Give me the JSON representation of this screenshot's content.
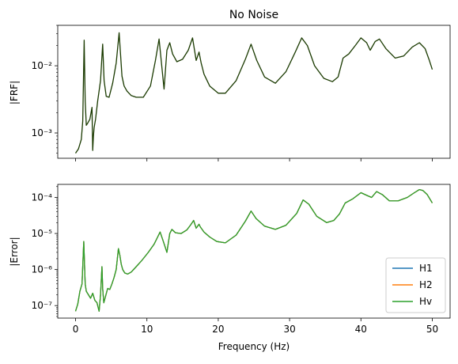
{
  "chart_data": [
    {
      "type": "line",
      "title": "No Noise",
      "xlabel": "",
      "ylabel": "|FRF|",
      "yscale": "log",
      "xlim": [
        -2.5,
        52.5
      ],
      "ylim": [
        0.00042,
        0.04
      ],
      "x_ticks": [
        0,
        10,
        20,
        30,
        40,
        50
      ],
      "x_ticklabels": [
        "",
        "",
        "",
        "",
        "",
        ""
      ],
      "y_ticks": [
        0.001,
        0.01
      ],
      "y_ticklabels": [
        "10⁻³",
        "10⁻²"
      ],
      "grid": false,
      "series": [
        {
          "color": "#1a3a00",
          "x": [
            0.0,
            0.4,
            0.8,
            1.0,
            1.2,
            1.35,
            1.5,
            1.7,
            2.0,
            2.3,
            2.4,
            2.5,
            2.6,
            2.8,
            3.1,
            3.5,
            3.8,
            4.0,
            4.3,
            4.7,
            5.2,
            5.7,
            6.1,
            6.5,
            6.8,
            7.2,
            7.8,
            8.5,
            9.5,
            10.5,
            11.2,
            11.7,
            12.0,
            12.4,
            12.8,
            13.2,
            13.6,
            14.2,
            15.0,
            15.8,
            16.4,
            16.9,
            17.3,
            17.6,
            18.0,
            18.8,
            20.0,
            21.0,
            22.5,
            23.8,
            24.6,
            25.4,
            26.5,
            28.0,
            29.5,
            30.8,
            31.7,
            32.5,
            33.5,
            34.8,
            36.0,
            36.8,
            37.5,
            38.3,
            39.2,
            40.0,
            40.8,
            41.3,
            42.0,
            42.6,
            43.5,
            44.8,
            46.0,
            47.2,
            48.2,
            49.0,
            49.6,
            50.0
          ],
          "y": [
            0.0005,
            0.00058,
            0.0008,
            0.0015,
            0.024,
            0.003,
            0.0013,
            0.0014,
            0.0016,
            0.0024,
            0.00055,
            0.0009,
            0.0012,
            0.0016,
            0.003,
            0.006,
            0.021,
            0.006,
            0.0035,
            0.0034,
            0.0055,
            0.011,
            0.031,
            0.007,
            0.005,
            0.0042,
            0.0036,
            0.0034,
            0.0034,
            0.005,
            0.012,
            0.025,
            0.012,
            0.0045,
            0.017,
            0.022,
            0.015,
            0.0115,
            0.0125,
            0.017,
            0.026,
            0.012,
            0.016,
            0.011,
            0.0075,
            0.005,
            0.0039,
            0.0039,
            0.006,
            0.0125,
            0.021,
            0.012,
            0.0068,
            0.0055,
            0.0082,
            0.016,
            0.026,
            0.02,
            0.01,
            0.0065,
            0.0058,
            0.0068,
            0.013,
            0.015,
            0.02,
            0.026,
            0.022,
            0.017,
            0.023,
            0.025,
            0.018,
            0.013,
            0.014,
            0.019,
            0.022,
            0.018,
            0.012,
            0.0088
          ]
        }
      ]
    },
    {
      "type": "line",
      "title": "",
      "xlabel": "Frequency (Hz)",
      "ylabel": "|Error|",
      "yscale": "log",
      "xlim": [
        -2.5,
        52.5
      ],
      "ylim": [
        4.5e-08,
        0.00023
      ],
      "x_ticks": [
        0,
        10,
        20,
        30,
        40,
        50
      ],
      "x_ticklabels": [
        "0",
        "10",
        "20",
        "30",
        "40",
        "50"
      ],
      "y_ticks": [
        1e-07,
        1e-06,
        1e-05,
        0.0001
      ],
      "y_ticklabels": [
        "10⁻⁷",
        "10⁻⁶",
        "10⁻⁵",
        "10⁻⁴"
      ],
      "grid": false,
      "legend": {
        "placement": "bottom-right",
        "entries": [
          "H1",
          "H2",
          "Hv"
        ]
      },
      "series": [
        {
          "name": "H1",
          "color": "#1f77b4",
          "x": [
            0.0,
            0.3,
            0.6,
            0.9,
            1.15,
            1.25,
            1.35,
            1.5,
            1.8,
            2.1,
            2.4,
            2.7,
            3.0,
            3.3,
            3.5,
            3.7,
            3.8,
            3.95,
            4.2,
            4.5,
            4.8,
            5.1,
            5.4,
            5.7,
            6.0,
            6.2,
            6.4,
            6.6,
            6.9,
            7.3,
            7.8,
            8.5,
            9.3,
            10.2,
            11.0,
            11.5,
            11.85,
            12.3,
            12.8,
            13.2,
            13.5,
            14.0,
            14.8,
            15.6,
            16.2,
            16.55,
            16.9,
            17.3,
            17.5,
            18.0,
            18.8,
            19.8,
            21.0,
            22.5,
            23.8,
            24.6,
            25.3,
            26.5,
            28.0,
            29.5,
            31.0,
            31.9,
            32.7,
            33.8,
            35.2,
            36.2,
            37.0,
            37.8,
            38.8,
            40.0,
            41.0,
            41.5,
            42.2,
            43.0,
            44.0,
            45.2,
            46.5,
            47.5,
            48.2,
            48.7,
            49.3,
            50.0
          ],
          "y": [
            7e-08,
            1.1e-07,
            2.5e-07,
            4e-07,
            6e-06,
            1.5e-06,
            4e-07,
            2.5e-07,
            2e-07,
            1.6e-07,
            2.2e-07,
            1.4e-07,
            1.2e-07,
            7e-08,
            2e-07,
            1.2e-06,
            3e-07,
            1.2e-07,
            1.8e-07,
            3e-07,
            2.8e-07,
            4e-07,
            6e-07,
            1e-06,
            3.8e-06,
            2.5e-06,
            1.4e-06,
            1e-06,
            8e-07,
            7.5e-07,
            8.5e-07,
            1.2e-06,
            1.8e-06,
            3e-06,
            5e-06,
            8e-06,
            1.1e-05,
            6e-06,
            3e-06,
            1e-05,
            1.3e-05,
            1.05e-05,
            1e-05,
            1.25e-05,
            1.8e-05,
            2.3e-05,
            1.4e-05,
            1.8e-05,
            1.5e-05,
            1.1e-05,
            8e-06,
            6e-06,
            5.5e-06,
            9e-06,
            2.2e-05,
            4.2e-05,
            2.6e-05,
            1.6e-05,
            1.3e-05,
            1.7e-05,
            3.6e-05,
            8.5e-05,
            6.5e-05,
            3e-05,
            2e-05,
            2.3e-05,
            3.5e-05,
            7e-05,
            9e-05,
            0.000135,
            0.00011,
            0.0001,
            0.000145,
            0.00012,
            8e-05,
            8e-05,
            0.0001,
            0.000135,
            0.000165,
            0.000155,
            0.00012,
            7e-05
          ]
        },
        {
          "name": "H2",
          "color": "#ff7f0e",
          "x": [
            0.0,
            0.3,
            0.6,
            0.9,
            1.15,
            1.25,
            1.35,
            1.5,
            1.8,
            2.1,
            2.4,
            2.7,
            3.0,
            3.3,
            3.5,
            3.7,
            3.8,
            3.95,
            4.2,
            4.5,
            4.8,
            5.1,
            5.4,
            5.7,
            6.0,
            6.2,
            6.4,
            6.6,
            6.9,
            7.3,
            7.8,
            8.5,
            9.3,
            10.2,
            11.0,
            11.5,
            11.85,
            12.3,
            12.8,
            13.2,
            13.5,
            14.0,
            14.8,
            15.6,
            16.2,
            16.55,
            16.9,
            17.3,
            17.5,
            18.0,
            18.8,
            19.8,
            21.0,
            22.5,
            23.8,
            24.6,
            25.3,
            26.5,
            28.0,
            29.5,
            31.0,
            31.9,
            32.7,
            33.8,
            35.2,
            36.2,
            37.0,
            37.8,
            38.8,
            40.0,
            41.0,
            41.5,
            42.2,
            43.0,
            44.0,
            45.2,
            46.5,
            47.5,
            48.2,
            48.7,
            49.3,
            50.0
          ],
          "y": [
            7e-08,
            1.1e-07,
            2.5e-07,
            4e-07,
            6e-06,
            1.5e-06,
            4e-07,
            2.5e-07,
            2e-07,
            1.6e-07,
            2.2e-07,
            1.4e-07,
            1.2e-07,
            7e-08,
            2e-07,
            1.2e-06,
            3e-07,
            1.2e-07,
            1.8e-07,
            3e-07,
            2.8e-07,
            4e-07,
            6e-07,
            1e-06,
            3.8e-06,
            2.5e-06,
            1.4e-06,
            1e-06,
            8e-07,
            7.5e-07,
            8.5e-07,
            1.2e-06,
            1.8e-06,
            3e-06,
            5e-06,
            8e-06,
            1.1e-05,
            6e-06,
            3e-06,
            1e-05,
            1.3e-05,
            1.05e-05,
            1e-05,
            1.25e-05,
            1.8e-05,
            2.3e-05,
            1.4e-05,
            1.8e-05,
            1.5e-05,
            1.1e-05,
            8e-06,
            6e-06,
            5.5e-06,
            9e-06,
            2.2e-05,
            4.2e-05,
            2.6e-05,
            1.6e-05,
            1.3e-05,
            1.7e-05,
            3.6e-05,
            8.5e-05,
            6.5e-05,
            3e-05,
            2e-05,
            2.3e-05,
            3.5e-05,
            7e-05,
            9e-05,
            0.000135,
            0.00011,
            0.0001,
            0.000145,
            0.00012,
            8e-05,
            8e-05,
            0.0001,
            0.000135,
            0.000165,
            0.000155,
            0.00012,
            7e-05
          ]
        },
        {
          "name": "Hv",
          "color": "#2ca02c",
          "x": [
            0.0,
            0.3,
            0.6,
            0.9,
            1.15,
            1.25,
            1.35,
            1.5,
            1.8,
            2.1,
            2.4,
            2.7,
            3.0,
            3.3,
            3.5,
            3.7,
            3.8,
            3.95,
            4.2,
            4.5,
            4.8,
            5.1,
            5.4,
            5.7,
            6.0,
            6.2,
            6.4,
            6.6,
            6.9,
            7.3,
            7.8,
            8.5,
            9.3,
            10.2,
            11.0,
            11.5,
            11.85,
            12.3,
            12.8,
            13.2,
            13.5,
            14.0,
            14.8,
            15.6,
            16.2,
            16.55,
            16.9,
            17.3,
            17.5,
            18.0,
            18.8,
            19.8,
            21.0,
            22.5,
            23.8,
            24.6,
            25.3,
            26.5,
            28.0,
            29.5,
            31.0,
            31.9,
            32.7,
            33.8,
            35.2,
            36.2,
            37.0,
            37.8,
            38.8,
            40.0,
            41.0,
            41.5,
            42.2,
            43.0,
            44.0,
            45.2,
            46.5,
            47.5,
            48.2,
            48.7,
            49.3,
            50.0
          ],
          "y": [
            7e-08,
            1.1e-07,
            2.5e-07,
            4e-07,
            6e-06,
            1.5e-06,
            4e-07,
            2.5e-07,
            2e-07,
            1.6e-07,
            2.2e-07,
            1.4e-07,
            1.2e-07,
            7e-08,
            2e-07,
            1.2e-06,
            3e-07,
            1.2e-07,
            1.8e-07,
            3e-07,
            2.8e-07,
            4e-07,
            6e-07,
            1e-06,
            3.8e-06,
            2.5e-06,
            1.4e-06,
            1e-06,
            8e-07,
            7.5e-07,
            8.5e-07,
            1.2e-06,
            1.8e-06,
            3e-06,
            5e-06,
            8e-06,
            1.1e-05,
            6e-06,
            3e-06,
            1e-05,
            1.3e-05,
            1.05e-05,
            1e-05,
            1.25e-05,
            1.8e-05,
            2.3e-05,
            1.4e-05,
            1.8e-05,
            1.5e-05,
            1.1e-05,
            8e-06,
            6e-06,
            5.5e-06,
            9e-06,
            2.2e-05,
            4.2e-05,
            2.6e-05,
            1.6e-05,
            1.3e-05,
            1.7e-05,
            3.6e-05,
            8.5e-05,
            6.5e-05,
            3e-05,
            2e-05,
            2.3e-05,
            3.5e-05,
            7e-05,
            9e-05,
            0.000135,
            0.00011,
            0.0001,
            0.000145,
            0.00012,
            8e-05,
            8e-05,
            0.0001,
            0.000135,
            0.000165,
            0.000155,
            0.00012,
            7e-05
          ]
        }
      ]
    }
  ]
}
